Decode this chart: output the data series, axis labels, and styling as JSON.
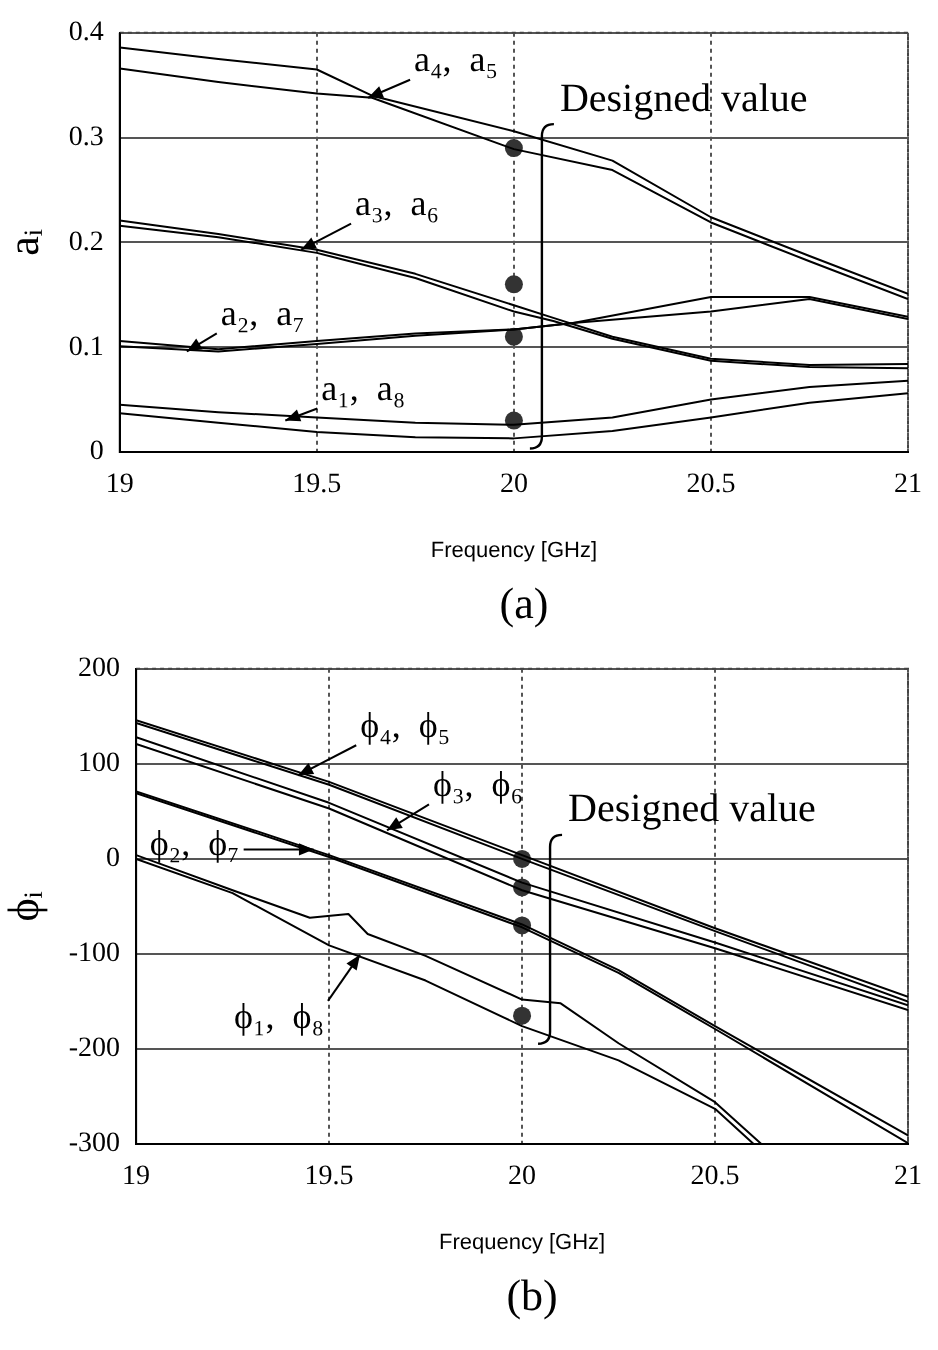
{
  "chart_data": [
    {
      "type": "line",
      "xlabel": "Frequency [GHz]",
      "ylabel": "aᵢ",
      "xlim": [
        19,
        21
      ],
      "xticks": [
        19,
        19.5,
        20,
        20.5,
        21
      ],
      "ylim": [
        0,
        0.4
      ],
      "yticks": [
        0,
        0.1,
        0.2,
        0.3,
        0.4
      ],
      "grid": true,
      "marker": "none",
      "annotations": [
        {
          "text": "a₄,  a₅",
          "x": 19.63,
          "y": 0.338
        },
        {
          "text": "a₃,  a₆",
          "x": 19.46,
          "y": 0.193
        },
        {
          "text": "a₂,  a₇",
          "x": 19.17,
          "y": 0.096
        },
        {
          "text": "a₁,  a₈",
          "x": 19.42,
          "y": 0.03
        },
        "Designed value",
        "(a)"
      ],
      "series": [
        {
          "color": "#000000",
          "x": [
            19,
            19.25,
            19.5,
            19.64,
            20,
            20.25,
            20.5,
            20.75,
            21
          ],
          "values": [
            0.386,
            0.375,
            0.365,
            0.34,
            0.306,
            0.278,
            0.224,
            0.187,
            0.151
          ]
        },
        {
          "color": "#000000",
          "x": [
            19,
            19.25,
            19.5,
            19.64,
            20,
            20.25,
            20.5,
            20.75,
            21
          ],
          "values": [
            0.366,
            0.353,
            0.342,
            0.338,
            0.289,
            0.269,
            0.219,
            0.182,
            0.146
          ]
        },
        {
          "color": "#000000",
          "x": [
            19,
            19.25,
            19.5,
            19.75,
            20,
            20.1,
            20.25,
            20.5,
            20.75,
            21
          ],
          "values": [
            0.221,
            0.208,
            0.193,
            0.17,
            0.14,
            0.128,
            0.11,
            0.089,
            0.083,
            0.084
          ]
        },
        {
          "color": "#000000",
          "x": [
            19,
            19.25,
            19.5,
            19.75,
            20,
            20.1,
            20.25,
            20.5,
            20.75,
            21
          ],
          "values": [
            0.216,
            0.205,
            0.19,
            0.166,
            0.134,
            0.125,
            0.108,
            0.087,
            0.081,
            0.08
          ]
        },
        {
          "color": "#000000",
          "x": [
            19,
            19.25,
            19.5,
            19.75,
            20,
            20.15,
            20.5,
            20.75,
            21
          ],
          "values": [
            0.106,
            0.098,
            0.106,
            0.113,
            0.117,
            0.123,
            0.148,
            0.148,
            0.129
          ]
        },
        {
          "color": "#000000",
          "x": [
            19,
            19.25,
            19.5,
            19.75,
            20,
            20.15,
            20.5,
            20.75,
            21
          ],
          "values": [
            0.101,
            0.096,
            0.103,
            0.111,
            0.117,
            0.123,
            0.134,
            0.146,
            0.127
          ]
        },
        {
          "color": "#000000",
          "x": [
            19,
            19.25,
            19.5,
            19.75,
            20,
            20.25,
            20.5,
            20.75,
            21
          ],
          "values": [
            0.045,
            0.038,
            0.033,
            0.028,
            0.026,
            0.033,
            0.05,
            0.062,
            0.068
          ]
        },
        {
          "color": "#000000",
          "x": [
            19,
            19.25,
            19.5,
            19.75,
            20,
            20.25,
            20.5,
            20.75,
            21
          ],
          "values": [
            0.037,
            0.028,
            0.019,
            0.014,
            0.013,
            0.02,
            0.033,
            0.047,
            0.056
          ]
        },
        {
          "type": "scatter",
          "marker": "circle",
          "color": "#333333",
          "x": [
            20,
            20,
            20,
            20
          ],
          "values": [
            0.29,
            0.16,
            0.11,
            0.03
          ]
        }
      ]
    },
    {
      "type": "line",
      "xlabel": "Frequency [GHz]",
      "ylabel": "ϕᵢ",
      "xlim": [
        19,
        21
      ],
      "xticks": [
        19,
        19.5,
        20,
        20.5,
        21
      ],
      "ylim": [
        -300,
        200
      ],
      "yticks": [
        -300,
        -200,
        -100,
        0,
        100,
        200
      ],
      "grid": true,
      "marker": "none",
      "annotations": [
        {
          "text": "ϕ₄,  ϕ₅",
          "x": 19.42,
          "y": 88
        },
        {
          "text": "ϕ₃,  ϕ₆",
          "x": 19.65,
          "y": 30
        },
        {
          "text": "ϕ₂,  ϕ₇",
          "x": 19.46,
          "y": 10
        },
        {
          "text": "ϕ₁,  ϕ₈",
          "x": 19.58,
          "y": -101
        },
        "Designed value",
        "(b)"
      ],
      "series": [
        {
          "color": "#000000",
          "x": [
            19,
            19.5,
            20,
            20.5,
            21
          ],
          "values": [
            146,
            81,
            4,
            -73,
            -145
          ]
        },
        {
          "color": "#000000",
          "x": [
            19,
            19.5,
            20,
            20.5,
            21
          ],
          "values": [
            143,
            78,
            0,
            -76,
            -150
          ]
        },
        {
          "color": "#000000",
          "x": [
            19,
            19.5,
            20,
            20.5,
            21
          ],
          "values": [
            128,
            59,
            -25,
            -88,
            -154
          ]
        },
        {
          "color": "#000000",
          "x": [
            19,
            19.5,
            20,
            20.5,
            21
          ],
          "values": [
            121,
            53,
            -33,
            -94,
            -159
          ]
        },
        {
          "color": "#000000",
          "x": [
            19,
            19.5,
            20,
            20.25,
            20.5,
            21
          ],
          "values": [
            71,
            4,
            -69,
            -117,
            -176,
            -291
          ]
        },
        {
          "color": "#000000",
          "x": [
            19,
            19.5,
            20,
            20.25,
            20.5,
            21
          ],
          "values": [
            69,
            2,
            -72,
            -120,
            -179,
            -299
          ]
        },
        {
          "color": "#000000",
          "x": [
            19,
            19.25,
            19.45,
            19.55,
            19.6,
            19.75,
            20,
            20.1,
            20.25,
            20.5,
            20.62
          ],
          "values": [
            4,
            -33,
            -62,
            -58,
            -79,
            -102,
            -148,
            -152,
            -194,
            -256,
            -300
          ]
        },
        {
          "color": "#000000",
          "x": [
            19,
            19.25,
            19.5,
            19.75,
            20,
            20.25,
            20.5,
            20.6
          ],
          "values": [
            0,
            -36,
            -91,
            -128,
            -176,
            -212,
            -263,
            -300
          ]
        },
        {
          "type": "scatter",
          "marker": "circle",
          "color": "#333333",
          "x": [
            20,
            20,
            20,
            20
          ],
          "values": [
            0,
            -30,
            -70,
            -165
          ]
        }
      ]
    }
  ]
}
